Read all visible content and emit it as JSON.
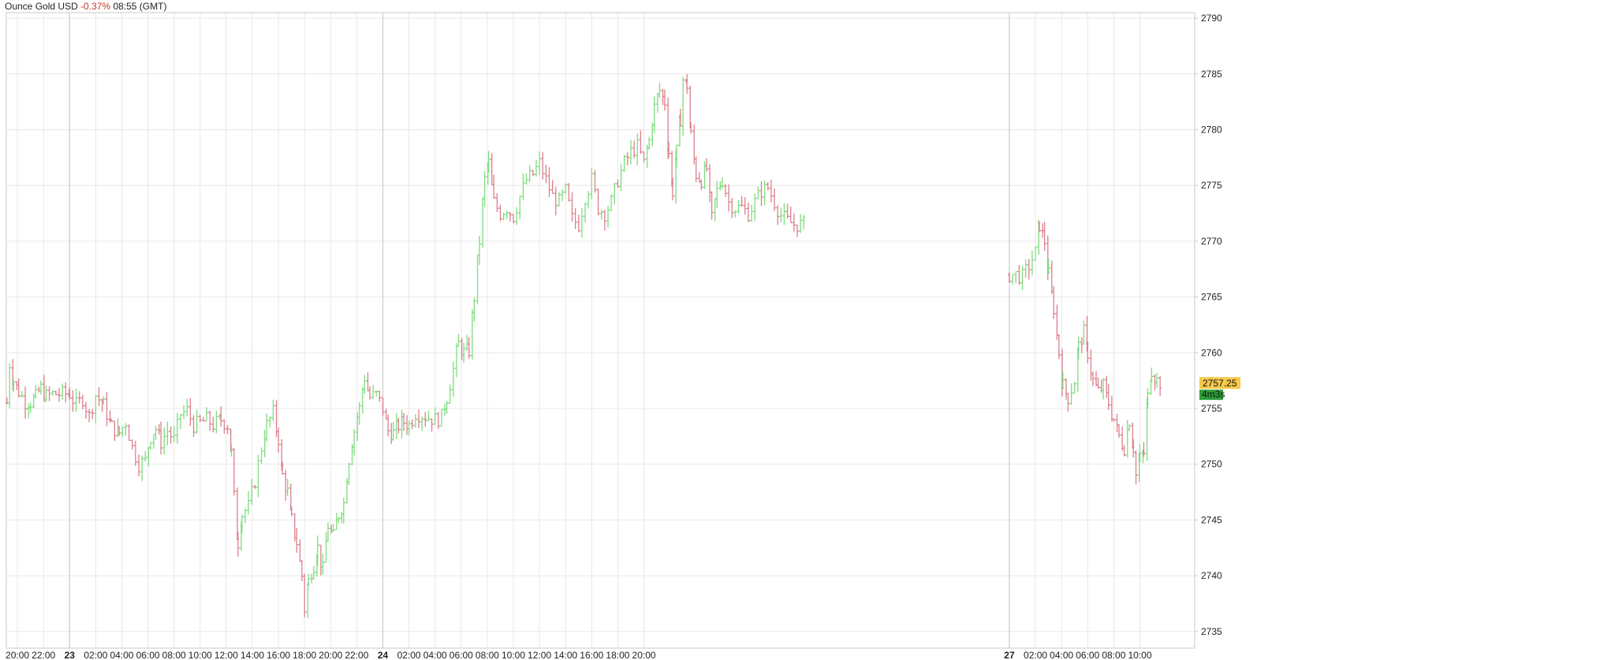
{
  "header": {
    "instrument": "Ounce Gold USD",
    "change": "-0.37%",
    "time": "08:55 (GMT)"
  },
  "colors": {
    "up": "#7fdc7f",
    "down": "#dc7f8c",
    "grid": "#e8e8e8",
    "axis_line": "#c9c9c9",
    "change_negative": "#c0392b",
    "price_tag": "#f7c94c",
    "countdown_tag": "#2e9e3a"
  },
  "indicators": {
    "last_price": "2757.25",
    "countdown": "4m3s"
  },
  "chart_data": {
    "type": "ohlc",
    "title": "Ounce Gold USD",
    "xlabel": "",
    "ylabel": "",
    "ylim": [
      2733.5,
      2790.5
    ],
    "y_ticks": [
      2735,
      2740,
      2745,
      2750,
      2755,
      2760,
      2765,
      2770,
      2775,
      2780,
      2785,
      2790
    ],
    "x_range_hours": [
      -4.85,
      86.2
    ],
    "x_ticks": [
      {
        "hour": -4,
        "label": "20:00",
        "bold": false
      },
      {
        "hour": -2,
        "label": "22:00",
        "bold": false
      },
      {
        "hour": 0,
        "label": "23",
        "bold": true
      },
      {
        "hour": 2,
        "label": "02:00",
        "bold": false
      },
      {
        "hour": 4,
        "label": "04:00",
        "bold": false
      },
      {
        "hour": 6,
        "label": "06:00",
        "bold": false
      },
      {
        "hour": 8,
        "label": "08:00",
        "bold": false
      },
      {
        "hour": 10,
        "label": "10:00",
        "bold": false
      },
      {
        "hour": 12,
        "label": "12:00",
        "bold": false
      },
      {
        "hour": 14,
        "label": "14:00",
        "bold": false
      },
      {
        "hour": 16,
        "label": "16:00",
        "bold": false
      },
      {
        "hour": 18,
        "label": "18:00",
        "bold": false
      },
      {
        "hour": 20,
        "label": "20:00",
        "bold": false
      },
      {
        "hour": 22,
        "label": "22:00",
        "bold": false
      },
      {
        "hour": 24,
        "label": "24",
        "bold": true
      },
      {
        "hour": 26,
        "label": "02:00",
        "bold": false
      },
      {
        "hour": 28,
        "label": "04:00",
        "bold": false
      },
      {
        "hour": 30,
        "label": "06:00",
        "bold": false
      },
      {
        "hour": 32,
        "label": "08:00",
        "bold": false
      },
      {
        "hour": 34,
        "label": "10:00",
        "bold": false
      },
      {
        "hour": 36,
        "label": "12:00",
        "bold": false
      },
      {
        "hour": 38,
        "label": "14:00",
        "bold": false
      },
      {
        "hour": 40,
        "label": "16:00",
        "bold": false
      },
      {
        "hour": 42,
        "label": "18:00",
        "bold": false
      },
      {
        "hour": 44,
        "label": "20:00",
        "bold": false
      },
      {
        "hour": 72,
        "label": "27",
        "bold": true
      },
      {
        "hour": 74,
        "label": "02:00",
        "bold": false
      },
      {
        "hour": 76,
        "label": "04:00",
        "bold": false
      },
      {
        "hour": 78,
        "label": "06:00",
        "bold": false
      },
      {
        "hour": 80,
        "label": "08:00",
        "bold": false
      },
      {
        "hour": 82,
        "label": "10:00",
        "bold": false
      }
    ],
    "price_path": [
      [
        -4.8,
        2755.5
      ],
      [
        -4.6,
        2759.0
      ],
      [
        -4.3,
        2757.5
      ],
      [
        -3.9,
        2756.5
      ],
      [
        -3.4,
        2755.6
      ],
      [
        -3.0,
        2755.6
      ],
      [
        -2.6,
        2756.0
      ],
      [
        -2.2,
        2756.8
      ],
      [
        -1.8,
        2756.1
      ],
      [
        -1.3,
        2756.3
      ],
      [
        0.0,
        2756.3
      ],
      [
        0.5,
        2755.3
      ],
      [
        1.0,
        2755.9
      ],
      [
        1.5,
        2754.3
      ],
      [
        2.0,
        2756.2
      ],
      [
        2.6,
        2755.3
      ],
      [
        3.2,
        2753.4
      ],
      [
        3.8,
        2752.8
      ],
      [
        4.3,
        2753.8
      ],
      [
        4.8,
        2751.5
      ],
      [
        5.3,
        2750.0
      ],
      [
        5.8,
        2750.3
      ],
      [
        6.2,
        2752.5
      ],
      [
        6.6,
        2753.2
      ],
      [
        7.0,
        2752.0
      ],
      [
        7.5,
        2753.0
      ],
      [
        8.0,
        2752.2
      ],
      [
        8.5,
        2754.5
      ],
      [
        9.0,
        2754.8
      ],
      [
        9.5,
        2753.5
      ],
      [
        10.0,
        2753.7
      ],
      [
        10.5,
        2754.0
      ],
      [
        11.0,
        2753.5
      ],
      [
        11.6,
        2754.0
      ],
      [
        12.1,
        2753.5
      ],
      [
        12.4,
        2751.0
      ],
      [
        12.6,
        2747.0
      ],
      [
        12.9,
        2743.0
      ],
      [
        13.2,
        2745.5
      ],
      [
        13.7,
        2746.2
      ],
      [
        14.2,
        2748.5
      ],
      [
        14.7,
        2751.5
      ],
      [
        15.1,
        2753.5
      ],
      [
        15.6,
        2754.6
      ],
      [
        16.0,
        2752.3
      ],
      [
        16.3,
        2749.0
      ],
      [
        16.7,
        2747.5
      ],
      [
        17.0,
        2745.0
      ],
      [
        17.4,
        2743.0
      ],
      [
        17.8,
        2740.0
      ],
      [
        18.0,
        2737.0
      ],
      [
        18.3,
        2739.5
      ],
      [
        18.7,
        2741.0
      ],
      [
        19.0,
        2742.5
      ],
      [
        19.4,
        2740.5
      ],
      [
        19.8,
        2744.5
      ],
      [
        20.2,
        2743.5
      ],
      [
        20.6,
        2745.5
      ],
      [
        21.0,
        2746.5
      ],
      [
        21.4,
        2750.5
      ],
      [
        21.8,
        2753.0
      ],
      [
        22.2,
        2755.0
      ],
      [
        22.6,
        2757.8
      ],
      [
        23.0,
        2756.0
      ],
      [
        23.5,
        2756.2
      ],
      [
        24.0,
        2755.0
      ],
      [
        24.4,
        2753.0
      ],
      [
        24.8,
        2752.8
      ],
      [
        25.2,
        2753.5
      ],
      [
        25.6,
        2753.8
      ],
      [
        26.0,
        2753.5
      ],
      [
        26.5,
        2754.6
      ],
      [
        28.0,
        2754.0
      ],
      [
        28.5,
        2754.2
      ],
      [
        28.9,
        2756.0
      ],
      [
        29.4,
        2758.5
      ],
      [
        29.8,
        2760.8
      ],
      [
        30.2,
        2760.0
      ],
      [
        30.6,
        2760.2
      ],
      [
        31.0,
        2765.0
      ],
      [
        31.4,
        2770.0
      ],
      [
        31.8,
        2775.5
      ],
      [
        32.1,
        2777.0
      ],
      [
        32.5,
        2773.5
      ],
      [
        33.0,
        2772.5
      ],
      [
        33.5,
        2773.0
      ],
      [
        34.0,
        2772.2
      ],
      [
        34.5,
        2774.0
      ],
      [
        35.0,
        2775.5
      ],
      [
        35.5,
        2776.0
      ],
      [
        36.0,
        2777.0
      ],
      [
        36.5,
        2775.5
      ],
      [
        37.0,
        2774.0
      ],
      [
        37.5,
        2773.5
      ],
      [
        38.0,
        2774.5
      ],
      [
        38.5,
        2772.0
      ],
      [
        39.0,
        2771.5
      ],
      [
        39.5,
        2774.0
      ],
      [
        40.0,
        2775.5
      ],
      [
        40.5,
        2773.0
      ],
      [
        41.0,
        2772.5
      ],
      [
        41.5,
        2773.5
      ],
      [
        42.0,
        2775.5
      ],
      [
        42.5,
        2777.0
      ],
      [
        43.0,
        2778.0
      ],
      [
        43.5,
        2778.5
      ],
      [
        44.0,
        2777.0
      ],
      [
        44.4,
        2779.0
      ],
      [
        44.8,
        2782.0
      ],
      [
        45.2,
        2783.5
      ],
      [
        45.6,
        2782.5
      ],
      [
        45.9,
        2778.0
      ],
      [
        46.2,
        2774.5
      ],
      [
        46.5,
        2778.0
      ],
      [
        46.8,
        2781.0
      ],
      [
        47.0,
        2784.5
      ],
      [
        47.3,
        2784.0
      ],
      [
        47.6,
        2779.5
      ],
      [
        48.0,
        2776.0
      ],
      [
        48.4,
        2775.5
      ],
      [
        48.8,
        2776.5
      ],
      [
        49.2,
        2772.0
      ],
      [
        49.6,
        2774.5
      ],
      [
        50.0,
        2775.5
      ],
      [
        50.5,
        2773.5
      ],
      [
        51.0,
        2773.0
      ],
      [
        51.5,
        2773.0
      ],
      [
        52.0,
        2772.5
      ],
      [
        52.5,
        2773.5
      ],
      [
        53.0,
        2774.5
      ],
      [
        53.5,
        2774.8
      ],
      [
        54.0,
        2773.5
      ],
      [
        54.5,
        2772.3
      ],
      [
        55.0,
        2771.8
      ],
      [
        55.5,
        2771.5
      ],
      [
        56.5,
        2771.5
      ],
      [
        72.0,
        2767.0
      ],
      [
        72.5,
        2767.0
      ],
      [
        73.0,
        2766.8
      ],
      [
        73.5,
        2767.8
      ],
      [
        74.0,
        2769.0
      ],
      [
        74.3,
        2771.5
      ],
      [
        74.7,
        2770.0
      ],
      [
        75.0,
        2767.0
      ],
      [
        75.4,
        2764.0
      ],
      [
        75.8,
        2760.0
      ],
      [
        76.1,
        2757.0
      ],
      [
        76.5,
        2756.0
      ],
      [
        77.0,
        2757.5
      ],
      [
        77.3,
        2760.5
      ],
      [
        77.7,
        2761.8
      ],
      [
        78.0,
        2760.0
      ],
      [
        78.4,
        2757.5
      ],
      [
        78.8,
        2756.5
      ],
      [
        79.2,
        2757.0
      ],
      [
        79.6,
        2755.5
      ],
      [
        80.0,
        2754.0
      ],
      [
        80.4,
        2752.5
      ],
      [
        80.8,
        2751.5
      ],
      [
        81.2,
        2754.0
      ],
      [
        81.5,
        2751.5
      ],
      [
        81.7,
        2749.0
      ],
      [
        82.0,
        2750.5
      ],
      [
        82.3,
        2751.0
      ],
      [
        82.6,
        2756.0
      ],
      [
        82.9,
        2758.5
      ],
      [
        83.3,
        2757.5
      ],
      [
        83.6,
        2757.3
      ]
    ]
  }
}
